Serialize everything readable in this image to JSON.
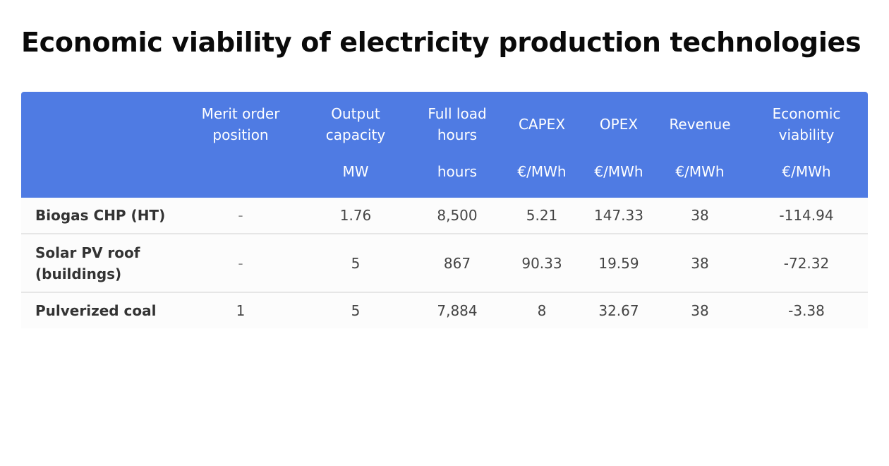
{
  "title": "Economic viability of electricity production technologies",
  "table": {
    "columns": [
      {
        "label": "",
        "unit": ""
      },
      {
        "label": "Merit order position",
        "unit": ""
      },
      {
        "label": "Output capacity",
        "unit": "MW"
      },
      {
        "label": "Full load hours",
        "unit": "hours"
      },
      {
        "label": "CAPEX",
        "unit": "€/MWh"
      },
      {
        "label": "OPEX",
        "unit": "€/MWh"
      },
      {
        "label": "Revenue",
        "unit": "€/MWh"
      },
      {
        "label": "Economic viability",
        "unit": "€/MWh"
      }
    ],
    "rows": [
      {
        "name": "Biogas CHP (HT)",
        "merit_order": "-",
        "capacity": "1.76",
        "full_load_hours": "8,500",
        "capex": "5.21",
        "opex": "147.33",
        "revenue": "38",
        "viability": "-114.94"
      },
      {
        "name": "Solar PV roof (buildings)",
        "merit_order": "-",
        "capacity": "5",
        "full_load_hours": "867",
        "capex": "90.33",
        "opex": "19.59",
        "revenue": "38",
        "viability": "-72.32"
      },
      {
        "name": "Pulverized coal",
        "merit_order": "1",
        "capacity": "5",
        "full_load_hours": "7,884",
        "capex": "8",
        "opex": "32.67",
        "revenue": "38",
        "viability": "-3.38"
      }
    ]
  }
}
